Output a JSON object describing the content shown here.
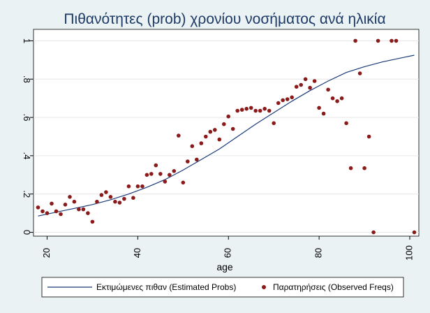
{
  "chart_data": {
    "type": "scatter",
    "title": "Πιθανότητες (prob)  χρονίου νοσήματος ανά ηλικία",
    "xlabel": "age",
    "ylabel": "",
    "xlim": [
      17,
      102
    ],
    "ylim": [
      -0.02,
      1.06
    ],
    "x_ticks": [
      20,
      40,
      60,
      80,
      100
    ],
    "x_tick_labels": [
      "20",
      "40",
      "60",
      "80",
      "100"
    ],
    "y_ticks": [
      0,
      0.2,
      0.4,
      0.6,
      0.8,
      1
    ],
    "y_tick_labels": [
      "0",
      ".2",
      ".4",
      ".6",
      ".8",
      "1"
    ],
    "grid": "horizontal",
    "legend_position": "bottom",
    "colors": {
      "line": "#1a3a78",
      "markers": "#8b1a1a",
      "plot_background": "#ffffff",
      "page_background": "#eaf2f3",
      "title": "#1e3a66"
    },
    "series": [
      {
        "name": "Εκτιμώμενες πιθαν (Estimated Probs)",
        "type": "line",
        "x": [
          18,
          22,
          26,
          30,
          34,
          38,
          42,
          46,
          50,
          54,
          58,
          62,
          66,
          70,
          74,
          78,
          82,
          86,
          90,
          94,
          98,
          101
        ],
        "values": [
          0.085,
          0.105,
          0.125,
          0.145,
          0.17,
          0.2,
          0.235,
          0.275,
          0.325,
          0.38,
          0.435,
          0.5,
          0.565,
          0.625,
          0.685,
          0.74,
          0.79,
          0.835,
          0.865,
          0.89,
          0.91,
          0.925
        ]
      },
      {
        "name": "Παρατηρήσεις (Observed Freqs)",
        "type": "scatter",
        "x": [
          18,
          19,
          20,
          21,
          22,
          23,
          24,
          25,
          26,
          27,
          28,
          29,
          30,
          31,
          32,
          33,
          34,
          35,
          36,
          37,
          38,
          39,
          40,
          41,
          42,
          43,
          44,
          45,
          46,
          47,
          48,
          49,
          50,
          51,
          52,
          53,
          54,
          55,
          56,
          57,
          58,
          59,
          60,
          61,
          62,
          63,
          64,
          65,
          66,
          67,
          68,
          69,
          70,
          71,
          72,
          73,
          74,
          75,
          76,
          77,
          78,
          79,
          80,
          81,
          82,
          83,
          84,
          85,
          86,
          87,
          88,
          89,
          90,
          91,
          92,
          93,
          96,
          97,
          101
        ],
        "values": [
          0.13,
          0.11,
          0.1,
          0.15,
          0.11,
          0.095,
          0.145,
          0.185,
          0.16,
          0.12,
          0.12,
          0.1,
          0.055,
          0.16,
          0.195,
          0.21,
          0.185,
          0.16,
          0.155,
          0.175,
          0.24,
          0.18,
          0.24,
          0.24,
          0.3,
          0.305,
          0.35,
          0.305,
          0.265,
          0.3,
          0.32,
          0.505,
          0.26,
          0.37,
          0.45,
          0.38,
          0.465,
          0.5,
          0.525,
          0.535,
          0.485,
          0.565,
          0.605,
          0.54,
          0.635,
          0.64,
          0.645,
          0.65,
          0.635,
          0.635,
          0.645,
          0.635,
          0.57,
          0.675,
          0.69,
          0.695,
          0.705,
          0.76,
          0.77,
          0.8,
          0.755,
          0.79,
          0.65,
          0.62,
          0.745,
          0.7,
          0.685,
          0.7,
          0.57,
          0.335,
          1.0,
          0.83,
          0.335,
          0.5,
          0.0,
          1.0,
          1.0,
          1.0,
          0.0
        ]
      }
    ]
  }
}
